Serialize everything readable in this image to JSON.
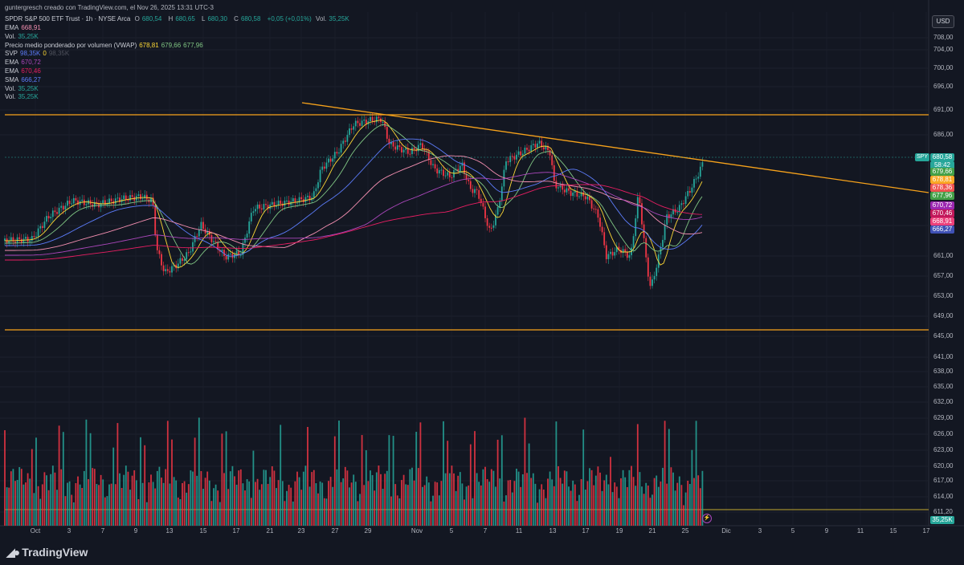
{
  "attribution": "guntergresch creado con TradingView.com, el Nov 26, 2025 13:31 UTC-3",
  "symbol": {
    "name": "SPDR S&P 500 ETF Trust · 1h · NYSE Arca",
    "o_label": "O",
    "o": "680,54",
    "h_label": "H",
    "h": "680,65",
    "l_label": "L",
    "l": "680,30",
    "c_label": "C",
    "c": "680,58",
    "change": "+0,05 (+0,01%)",
    "vol_label": "Vol.",
    "vol": "35,25K"
  },
  "indicators": [
    {
      "name": "EMA",
      "values": [
        "668,91"
      ],
      "colors": [
        "#f48fb1"
      ]
    },
    {
      "name": "Vol.",
      "values": [
        "35,25K"
      ],
      "colors": [
        "#26a69a"
      ]
    },
    {
      "name": "Precio medio ponderado por volumen (VWAP)",
      "values": [
        "678,81",
        "679,66",
        "677,96"
      ],
      "colors": [
        "#fdd835",
        "#81c784",
        "#81c784"
      ]
    },
    {
      "name": "SVP",
      "values": [
        "98,35K",
        "0",
        "98,35K"
      ],
      "colors": [
        "#5c7cfa",
        "#fdd835",
        "#50535e"
      ]
    },
    {
      "name": "EMA",
      "values": [
        "670,72"
      ],
      "colors": [
        "#ab47bc"
      ]
    },
    {
      "name": "EMA",
      "values": [
        "670,46"
      ],
      "colors": [
        "#e91e63"
      ]
    },
    {
      "name": "SMA",
      "values": [
        "666,27"
      ],
      "colors": [
        "#5c7cfa"
      ]
    },
    {
      "name": "Vol.",
      "values": [
        "35,25K"
      ],
      "colors": [
        "#26a69a"
      ]
    },
    {
      "name": "Vol.",
      "values": [
        "35,25K"
      ],
      "colors": [
        "#26a69a"
      ]
    }
  ],
  "currency_button": "USD",
  "price_ticks": [
    "708,00",
    "704,00",
    "700,00",
    "696,00",
    "691,00",
    "686,00",
    "665,00",
    "661,00",
    "657,00",
    "653,00",
    "649,00",
    "645,00",
    "641,00",
    "638,00",
    "635,00",
    "632,00",
    "629,00",
    "626,00",
    "623,00",
    "620,00",
    "617,00",
    "614,00",
    "611,20"
  ],
  "price_tags": [
    {
      "text": "680,58",
      "color": "#26a69a"
    },
    {
      "text": "58:42",
      "color": "#26a69a"
    },
    {
      "text": "679,66",
      "color": "#43a047"
    },
    {
      "text": "678,81",
      "color": "#f9a825"
    },
    {
      "text": "678,36",
      "color": "#ef5350"
    },
    {
      "text": "677,96",
      "color": "#43a047"
    },
    {
      "text": "670,72",
      "color": "#9c27b0"
    },
    {
      "text": "670,46",
      "color": "#c2185b"
    },
    {
      "text": "668,91",
      "color": "#ec407a"
    },
    {
      "text": "666,27",
      "color": "#3f51b5"
    },
    {
      "text": "35,25K",
      "color": "#26a69a"
    }
  ],
  "spy_label": "SPY",
  "x_ticks": [
    "Oct",
    "3",
    "7",
    "9",
    "13",
    "15",
    "17",
    "21",
    "23",
    "27",
    "29",
    "Nov",
    "5",
    "7",
    "11",
    "13",
    "17",
    "19",
    "21",
    "25",
    "Dic",
    "3",
    "5",
    "9",
    "11",
    "15",
    "17"
  ],
  "brand": "TradingView",
  "colors": {
    "up": "#26a69a",
    "down": "#f23645",
    "trend": "#f7a21b",
    "bg": "#131722"
  }
}
